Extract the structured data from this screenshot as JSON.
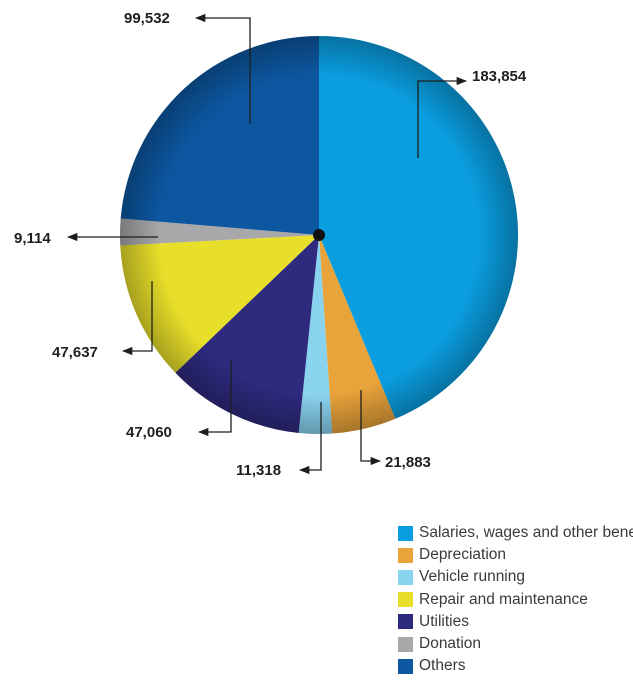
{
  "chart_data": {
    "type": "pie",
    "title": "",
    "categories": [
      "Salaries, wages and other benefits",
      "Depreciation",
      "Vehicle running",
      "Repair and maintenance",
      "Utilities",
      "Donation",
      "Others"
    ],
    "values": [
      183854,
      21883,
      11318,
      47637,
      47060,
      9114,
      99532
    ],
    "value_labels": [
      "183,854",
      "21,883",
      "11,318",
      "47,637",
      "47,060",
      "9,114",
      "99,532"
    ],
    "colors": [
      "#0a9ee0",
      "#e8a33a",
      "#8ad3ef",
      "#e8df2a",
      "#2e2a7e",
      "#a8a8aa",
      "#0c57a0"
    ],
    "slice_order": [
      0,
      1,
      2,
      4,
      3,
      5,
      6
    ],
    "start_angle_deg": 0,
    "direction": "clockwise",
    "legend_position": "bottom-right"
  }
}
